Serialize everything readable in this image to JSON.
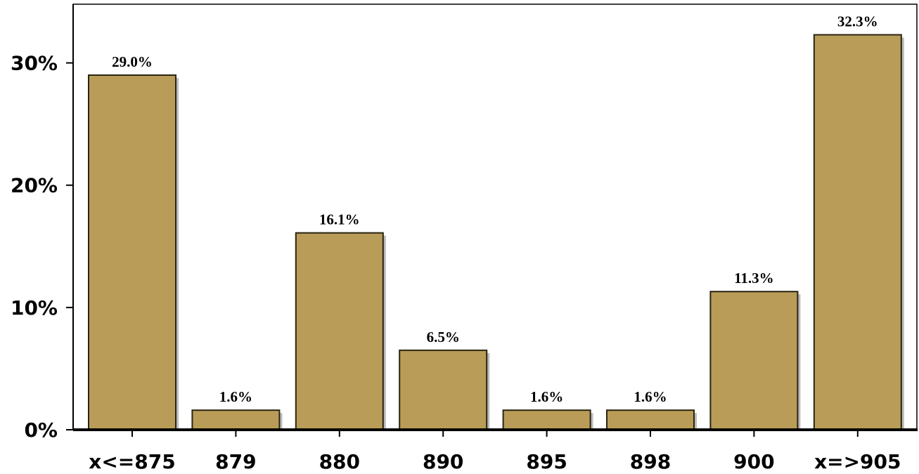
{
  "chart_data": {
    "type": "bar",
    "categories": [
      "x<=875",
      "879",
      "880",
      "890",
      "895",
      "898",
      "900",
      "x=>905"
    ],
    "values": [
      29.0,
      1.6,
      16.1,
      6.5,
      1.6,
      1.6,
      11.3,
      32.3
    ],
    "value_labels": [
      "29.0%",
      "1.6%",
      "16.1%",
      "6.5%",
      "1.6%",
      "1.6%",
      "11.3%",
      "32.3%"
    ],
    "color": "#b89c58",
    "ylim": [
      0,
      34.8
    ],
    "yticks": [
      {
        "value": 0,
        "label": "0%"
      },
      {
        "value": 10,
        "label": "10%"
      },
      {
        "value": 20,
        "label": "20%"
      },
      {
        "value": 30,
        "label": "30%"
      }
    ]
  }
}
